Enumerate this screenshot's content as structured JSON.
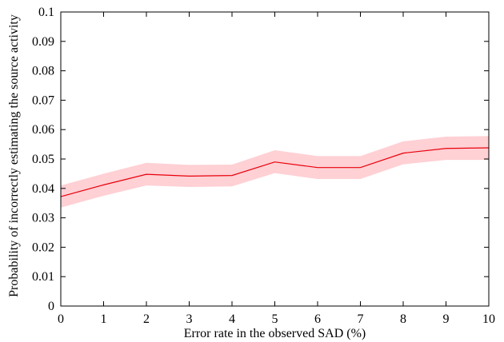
{
  "chart_data": {
    "type": "line",
    "title": "",
    "xlabel": "Error rate in the observed SAD (%)",
    "ylabel": "Probability of incorrectly estimating the source activity",
    "xlim": [
      0,
      10
    ],
    "ylim": [
      0,
      0.1
    ],
    "x_ticks": [
      0,
      1,
      2,
      3,
      4,
      5,
      6,
      7,
      8,
      9,
      10
    ],
    "y_ticks": [
      0,
      0.01,
      0.02,
      0.03,
      0.04,
      0.05,
      0.06,
      0.07,
      0.08,
      0.09,
      0.1
    ],
    "x_tick_labels": [
      "0",
      "1",
      "2",
      "3",
      "4",
      "5",
      "6",
      "7",
      "8",
      "9",
      "10"
    ],
    "y_tick_labels": [
      "0",
      "0.01",
      "0.02",
      "0.03",
      "0.04",
      "0.05",
      "0.06",
      "0.07",
      "0.08",
      "0.09",
      "0.1"
    ],
    "grid": false,
    "series": [
      {
        "x": [
          0,
          1,
          2,
          3,
          4,
          5,
          6,
          7,
          8,
          9,
          10
        ],
        "values": [
          0.0372,
          0.0412,
          0.0448,
          0.0442,
          0.0444,
          0.049,
          0.0471,
          0.0471,
          0.052,
          0.0536,
          0.0538
        ],
        "lower": [
          0.0335,
          0.0375,
          0.041,
          0.0405,
          0.0407,
          0.0452,
          0.0432,
          0.0432,
          0.0482,
          0.0497,
          0.0497
        ],
        "upper": [
          0.041,
          0.045,
          0.0487,
          0.048,
          0.0481,
          0.053,
          0.051,
          0.051,
          0.056,
          0.0576,
          0.0578
        ],
        "color": "#e8000b",
        "band_color": "#ffd0d4"
      }
    ]
  }
}
